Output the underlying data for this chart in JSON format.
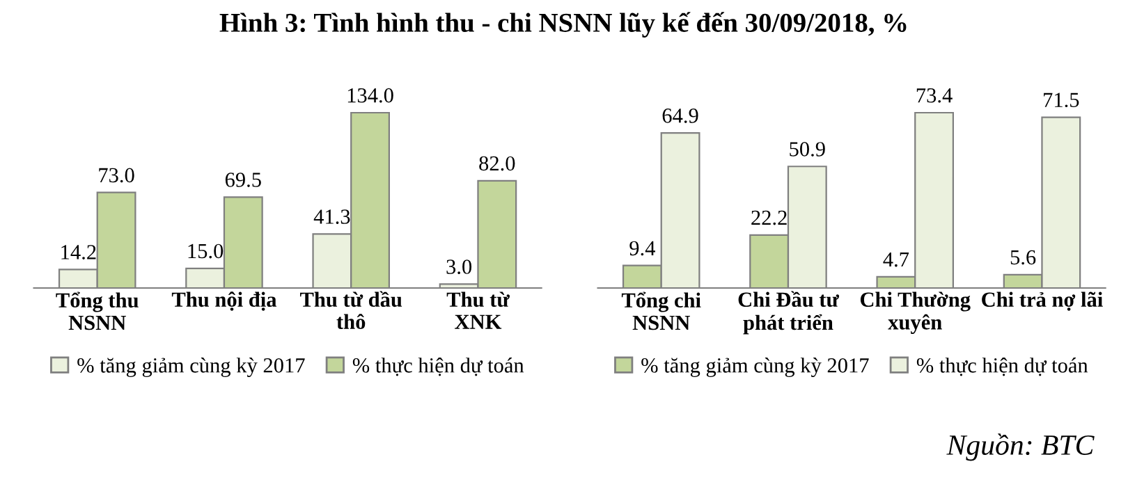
{
  "chart_data": [
    {
      "type": "bar",
      "title": "Hình 3: Tình hình thu - chi NSNN lũy kế đến 30/09/2018, %",
      "categories": [
        "Tổng thu\nNSNN",
        "Thu nội địa",
        "Thu từ dầu\nthô",
        "Thu từ\nXNK"
      ],
      "legend": "bottom",
      "series": [
        {
          "name": "% tăng giảm cùng kỳ 2017",
          "color": "#ebf1de",
          "values": [
            14.2,
            15.0,
            41.3,
            3.0
          ],
          "value_labels": [
            "14.2",
            "15.0",
            "41.3",
            "3.0"
          ]
        },
        {
          "name": "% thực hiện dự toán",
          "color": "#c3d69b",
          "values": [
            73.0,
            69.5,
            134.0,
            82.0
          ],
          "value_labels": [
            "73.0",
            "69.5",
            "134.0",
            "82.0"
          ]
        }
      ]
    },
    {
      "type": "bar",
      "categories": [
        "Tổng chi\nNSNN",
        "Chi Đầu tư\nphát triển",
        "Chi Thường\nxuyên",
        "Chi trả nợ lãi"
      ],
      "legend": "bottom",
      "annotations": [
        "Nguồn: BTC"
      ],
      "series": [
        {
          "name": "% tăng giảm cùng kỳ 2017",
          "color": "#c3d69b",
          "values": [
            9.4,
            22.2,
            4.7,
            5.6
          ],
          "value_labels": [
            "9.4",
            "22.2",
            "4.7",
            "5.6"
          ]
        },
        {
          "name": "% thực hiện dự toán",
          "color": "#ebf1de",
          "values": [
            64.9,
            50.9,
            73.4,
            71.5
          ],
          "value_labels": [
            "64.9",
            "50.9",
            "73.4",
            "71.5"
          ]
        }
      ]
    }
  ]
}
